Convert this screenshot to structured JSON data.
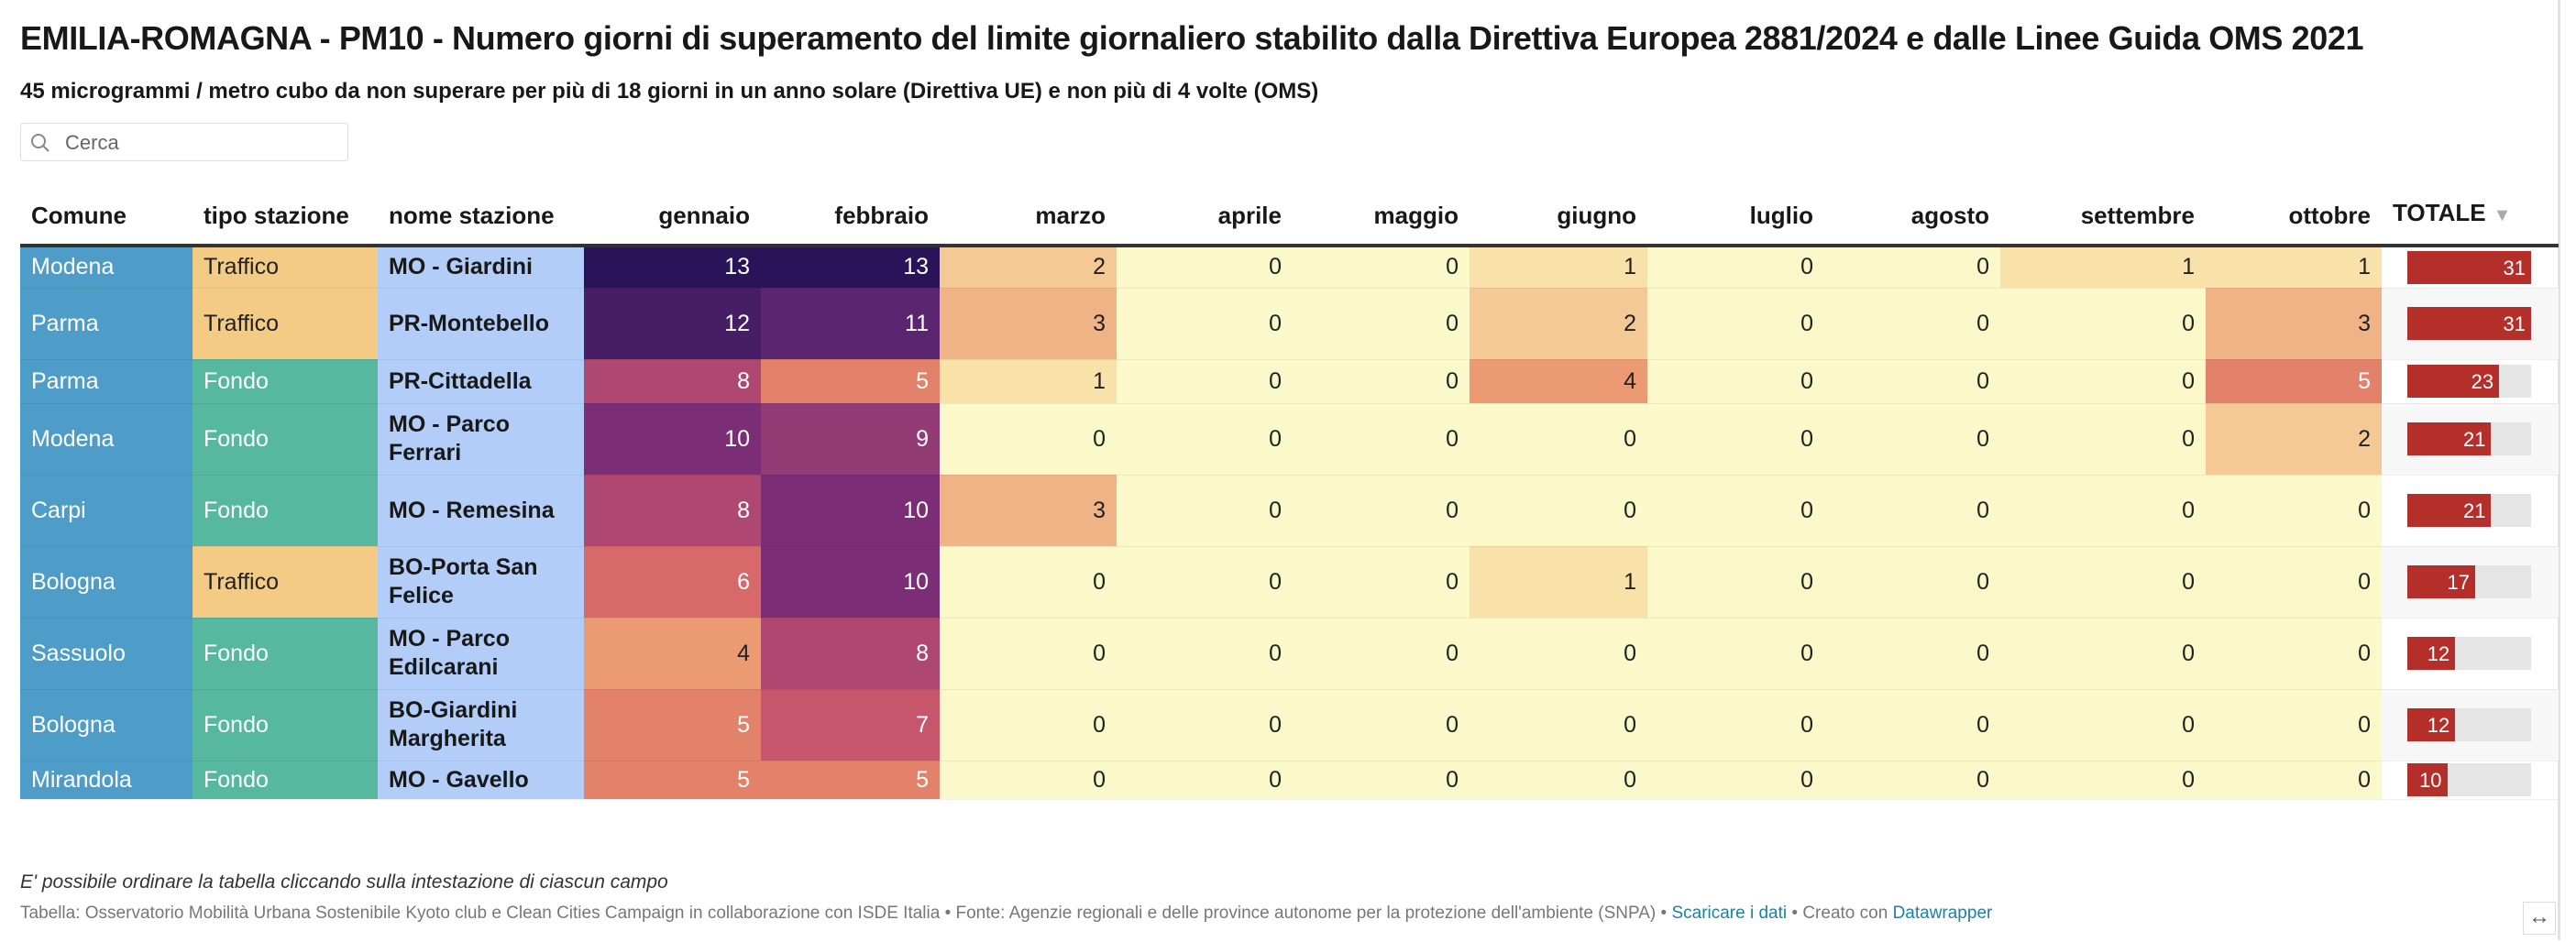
{
  "title": "EMILIA-ROMAGNA - PM10 - Numero giorni di superamento del limite giornaliero stabilito dalla Direttiva Europea 2881/2024 e dalle Linee Guida OMS 2021",
  "subtitle": "45 microgrammi / metro cubo da non superare per più di 18 giorni in un anno solare (Direttiva UE) e non più di 4 volte (OMS)",
  "search": {
    "placeholder": "Cerca",
    "value": "",
    "icon": "search-icon"
  },
  "table": {
    "columns": [
      "Comune",
      "tipo stazione",
      "nome stazione",
      "gennaio",
      "febbraio",
      "marzo",
      "aprile",
      "maggio",
      "giugno",
      "luglio",
      "agosto",
      "settembre",
      "ottobre",
      "TOTALE"
    ],
    "sorted_column": "TOTALE",
    "sort_direction": "descending",
    "total_max": 31,
    "rows": [
      {
        "comune": "Modena",
        "tipo": "Traffico",
        "nome": "MO - Giardini",
        "months": [
          13,
          13,
          2,
          0,
          0,
          1,
          0,
          0,
          1,
          1
        ],
        "totale": 31
      },
      {
        "comune": "Parma",
        "tipo": "Traffico",
        "nome": "PR-Montebello",
        "months": [
          12,
          11,
          3,
          0,
          0,
          2,
          0,
          0,
          0,
          3
        ],
        "totale": 31
      },
      {
        "comune": "Parma",
        "tipo": "Fondo",
        "nome": "PR-Cittadella",
        "months": [
          8,
          5,
          1,
          0,
          0,
          4,
          0,
          0,
          0,
          5
        ],
        "totale": 23
      },
      {
        "comune": "Modena",
        "tipo": "Fondo",
        "nome": "MO - Parco Ferrari",
        "months": [
          10,
          9,
          0,
          0,
          0,
          0,
          0,
          0,
          0,
          2
        ],
        "totale": 21
      },
      {
        "comune": "Carpi",
        "tipo": "Fondo",
        "nome": "MO - Remesina",
        "months": [
          8,
          10,
          3,
          0,
          0,
          0,
          0,
          0,
          0,
          0
        ],
        "totale": 21
      },
      {
        "comune": "Bologna",
        "tipo": "Traffico",
        "nome": "BO-Porta San Felice",
        "months": [
          6,
          10,
          0,
          0,
          0,
          1,
          0,
          0,
          0,
          0
        ],
        "totale": 17
      },
      {
        "comune": "Sassuolo",
        "tipo": "Fondo",
        "nome": "MO - Parco Edilcarani",
        "months": [
          4,
          8,
          0,
          0,
          0,
          0,
          0,
          0,
          0,
          0
        ],
        "totale": 12
      },
      {
        "comune": "Bologna",
        "tipo": "Fondo",
        "nome": "BO-Giardini Margherita",
        "months": [
          5,
          7,
          0,
          0,
          0,
          0,
          0,
          0,
          0,
          0
        ],
        "totale": 12
      },
      {
        "comune": "Mirandola",
        "tipo": "Fondo",
        "nome": "MO - Gavello",
        "months": [
          5,
          5,
          0,
          0,
          0,
          0,
          0,
          0,
          0,
          0
        ],
        "totale": 10
      }
    ]
  },
  "colors": {
    "comune": "#4e9dc9",
    "traffico": "#f4cb85",
    "fondo": "#55b89f",
    "nome": "#b1cdf8",
    "totale_bar": "#b52f2a",
    "scale": [
      "#fbf9c9",
      "#f8e2aa",
      "#f4c996",
      "#efb385",
      "#ec9a72",
      "#e2826a",
      "#d8696a",
      "#c7566d",
      "#ae4870",
      "#933b75",
      "#7b2e75",
      "#5c2570",
      "#471d66",
      "#2a1459"
    ]
  },
  "footer": {
    "note": "E' possibile ordinare la tabella cliccando sulla intestazione di ciascun campo",
    "source": "Tabella: Osservatorio Mobilità Urbana Sostenibile Kyoto club e Clean Cities Campaign in collaborazione con ISDE Italia • Fonte: Agenzie regionali e delle province autonome per la protezione dell'ambiente (SNPA) • ",
    "download_link": "Scaricare i dati",
    "separator": " • Creato con ",
    "datawrapper_link": "Datawrapper"
  }
}
